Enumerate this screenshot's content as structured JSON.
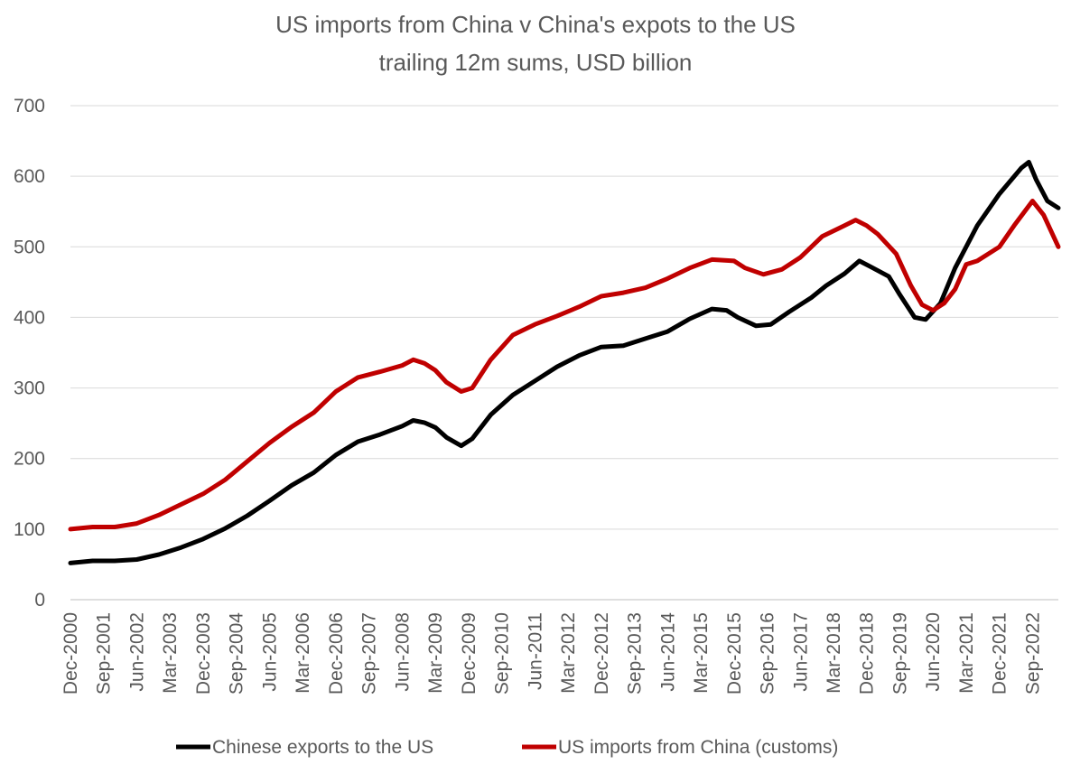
{
  "chart_data": {
    "type": "line",
    "title": "US imports from China v China's expots to the US",
    "subtitle": "trailing 12m sums, USD billion",
    "xlabel": "",
    "ylabel": "",
    "ylim": [
      0,
      700
    ],
    "yticks": [
      0,
      100,
      200,
      300,
      400,
      500,
      600,
      700
    ],
    "xlim": [
      "2000-12",
      "2023-04"
    ],
    "x_tick_labels": [
      "Dec-2000",
      "Sep-2001",
      "Jun-2002",
      "Mar-2003",
      "Dec-2003",
      "Sep-2004",
      "Jun-2005",
      "Mar-2006",
      "Dec-2006",
      "Sep-2007",
      "Jun-2008",
      "Mar-2009",
      "Dec-2009",
      "Sep-2010",
      "Jun-2011",
      "Mar-2012",
      "Dec-2012",
      "Sep-2013",
      "Jun-2014",
      "Mar-2015",
      "Dec-2015",
      "Sep-2016",
      "Jun-2017",
      "Mar-2018",
      "Dec-2018",
      "Sep-2019",
      "Jun-2020",
      "Mar-2021",
      "Dec-2021",
      "Sep-2022"
    ],
    "grid": true,
    "legend_position": "bottom",
    "series": [
      {
        "name": "Chinese exports to the US",
        "color": "#000000",
        "points": [
          [
            "2000-12",
            52
          ],
          [
            "2001-06",
            55
          ],
          [
            "2001-12",
            55
          ],
          [
            "2002-06",
            57
          ],
          [
            "2002-12",
            64
          ],
          [
            "2003-06",
            74
          ],
          [
            "2003-12",
            86
          ],
          [
            "2004-06",
            101
          ],
          [
            "2004-12",
            119
          ],
          [
            "2005-06",
            140
          ],
          [
            "2005-12",
            162
          ],
          [
            "2006-06",
            180
          ],
          [
            "2006-12",
            205
          ],
          [
            "2007-06",
            224
          ],
          [
            "2007-12",
            234
          ],
          [
            "2008-06",
            246
          ],
          [
            "2008-09",
            254
          ],
          [
            "2008-12",
            251
          ],
          [
            "2009-03",
            244
          ],
          [
            "2009-06",
            230
          ],
          [
            "2009-10",
            218
          ],
          [
            "2010-01",
            228
          ],
          [
            "2010-06",
            262
          ],
          [
            "2010-12",
            290
          ],
          [
            "2011-06",
            310
          ],
          [
            "2011-12",
            330
          ],
          [
            "2012-06",
            346
          ],
          [
            "2012-12",
            358
          ],
          [
            "2013-06",
            360
          ],
          [
            "2013-12",
            370
          ],
          [
            "2014-06",
            380
          ],
          [
            "2014-12",
            398
          ],
          [
            "2015-06",
            412
          ],
          [
            "2015-10",
            410
          ],
          [
            "2016-01",
            400
          ],
          [
            "2016-06",
            388
          ],
          [
            "2016-10",
            390
          ],
          [
            "2017-03",
            408
          ],
          [
            "2017-09",
            428
          ],
          [
            "2018-01",
            445
          ],
          [
            "2018-06",
            462
          ],
          [
            "2018-10",
            480
          ],
          [
            "2019-01",
            472
          ],
          [
            "2019-06",
            458
          ],
          [
            "2019-09",
            432
          ],
          [
            "2020-01",
            400
          ],
          [
            "2020-04",
            397
          ],
          [
            "2020-08",
            420
          ],
          [
            "2020-12",
            470
          ],
          [
            "2021-06",
            530
          ],
          [
            "2021-12",
            575
          ],
          [
            "2022-06",
            612
          ],
          [
            "2022-08",
            620
          ],
          [
            "2022-10",
            595
          ],
          [
            "2023-01",
            565
          ],
          [
            "2023-04",
            555
          ]
        ]
      },
      {
        "name": "US imports from China (customs)",
        "color": "#c00000",
        "points": [
          [
            "2000-12",
            100
          ],
          [
            "2001-06",
            103
          ],
          [
            "2001-12",
            103
          ],
          [
            "2002-06",
            108
          ],
          [
            "2002-12",
            120
          ],
          [
            "2003-06",
            135
          ],
          [
            "2003-12",
            150
          ],
          [
            "2004-06",
            170
          ],
          [
            "2004-12",
            196
          ],
          [
            "2005-06",
            222
          ],
          [
            "2005-12",
            245
          ],
          [
            "2006-06",
            265
          ],
          [
            "2006-12",
            295
          ],
          [
            "2007-06",
            315
          ],
          [
            "2007-12",
            323
          ],
          [
            "2008-06",
            332
          ],
          [
            "2008-09",
            340
          ],
          [
            "2008-12",
            335
          ],
          [
            "2009-03",
            325
          ],
          [
            "2009-06",
            308
          ],
          [
            "2009-10",
            295
          ],
          [
            "2010-01",
            300
          ],
          [
            "2010-06",
            340
          ],
          [
            "2010-12",
            375
          ],
          [
            "2011-06",
            390
          ],
          [
            "2011-12",
            402
          ],
          [
            "2012-06",
            415
          ],
          [
            "2012-12",
            430
          ],
          [
            "2013-06",
            435
          ],
          [
            "2013-12",
            442
          ],
          [
            "2014-06",
            455
          ],
          [
            "2014-12",
            470
          ],
          [
            "2015-06",
            482
          ],
          [
            "2015-12",
            480
          ],
          [
            "2016-03",
            470
          ],
          [
            "2016-08",
            461
          ],
          [
            "2017-01",
            468
          ],
          [
            "2017-06",
            485
          ],
          [
            "2017-12",
            515
          ],
          [
            "2018-06",
            530
          ],
          [
            "2018-09",
            538
          ],
          [
            "2018-12",
            530
          ],
          [
            "2019-03",
            518
          ],
          [
            "2019-08",
            490
          ],
          [
            "2019-12",
            445
          ],
          [
            "2020-03",
            418
          ],
          [
            "2020-06",
            410
          ],
          [
            "2020-09",
            420
          ],
          [
            "2020-12",
            440
          ],
          [
            "2021-03",
            475
          ],
          [
            "2021-06",
            480
          ],
          [
            "2021-12",
            500
          ],
          [
            "2022-04",
            530
          ],
          [
            "2022-09",
            565
          ],
          [
            "2022-12",
            545
          ],
          [
            "2023-04",
            500
          ]
        ]
      }
    ]
  }
}
